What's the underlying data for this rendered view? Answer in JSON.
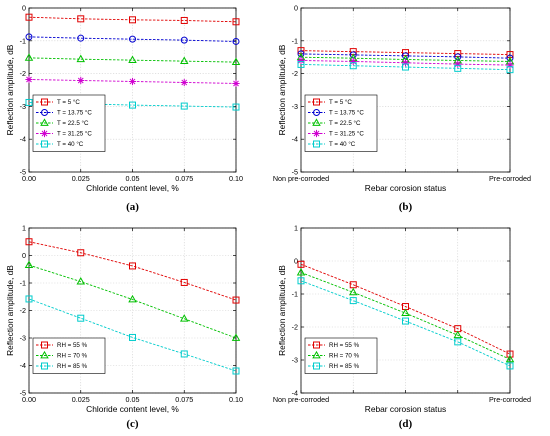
{
  "figure_title": "",
  "chart_data": [
    {
      "type": "line",
      "panel_label": "(a)",
      "xlabel": "Chloride content level, %",
      "ylabel": "Reflection amplitude, dB",
      "x": [
        0.0,
        0.025,
        0.05,
        0.075,
        0.1
      ],
      "xtick_labels": [
        "0.00",
        "0.025",
        "0.05",
        "0.075",
        "0.10"
      ],
      "xlim": [
        0.0,
        0.1
      ],
      "ylim": [
        -5,
        0
      ],
      "yticks": [
        0,
        -1,
        -2,
        -3,
        -4,
        -5
      ],
      "grid": true,
      "legend_position": "bottom-left",
      "series": [
        {
          "name": "T = 5 °C",
          "color": "#e00000",
          "marker": "square",
          "values": [
            -0.28,
            -0.33,
            -0.36,
            -0.38,
            -0.42
          ]
        },
        {
          "name": "T = 13.75 °C",
          "color": "#0000d0",
          "marker": "circle",
          "values": [
            -0.88,
            -0.92,
            -0.95,
            -0.98,
            -1.02
          ]
        },
        {
          "name": "T = 22.5 °C",
          "color": "#00c000",
          "marker": "triangle",
          "values": [
            -1.52,
            -1.56,
            -1.59,
            -1.62,
            -1.65
          ]
        },
        {
          "name": "T = 31.25 °C",
          "color": "#d000d0",
          "marker": "star",
          "values": [
            -2.18,
            -2.21,
            -2.24,
            -2.27,
            -2.3
          ]
        },
        {
          "name": "T = 40 °C",
          "color": "#00cccc",
          "marker": "square",
          "values": [
            -2.88,
            -2.92,
            -2.96,
            -2.99,
            -3.02
          ]
        }
      ]
    },
    {
      "type": "line",
      "panel_label": "(b)",
      "xlabel": "Rebar corosion status",
      "ylabel": "Reflection amplitude, dB",
      "x": [
        0,
        1,
        2,
        3,
        4
      ],
      "xtick_labels": [
        "Non pre-corroded",
        "",
        "",
        "",
        "Pre-corroded"
      ],
      "xlim": [
        0,
        4
      ],
      "ylim": [
        -5,
        0
      ],
      "yticks": [
        0,
        -1,
        -2,
        -3,
        -4,
        -5
      ],
      "grid": true,
      "legend_position": "bottom-left",
      "series": [
        {
          "name": "T = 5 °C",
          "color": "#e00000",
          "marker": "square",
          "values": [
            -1.3,
            -1.33,
            -1.36,
            -1.39,
            -1.42
          ]
        },
        {
          "name": "T = 13.75 °C",
          "color": "#0000d0",
          "marker": "circle",
          "values": [
            -1.4,
            -1.43,
            -1.46,
            -1.49,
            -1.53
          ]
        },
        {
          "name": "T = 22.5 °C",
          "color": "#00c000",
          "marker": "triangle",
          "values": [
            -1.5,
            -1.53,
            -1.57,
            -1.6,
            -1.63
          ]
        },
        {
          "name": "T = 31.25 °C",
          "color": "#d000d0",
          "marker": "star",
          "values": [
            -1.6,
            -1.63,
            -1.67,
            -1.71,
            -1.74
          ]
        },
        {
          "name": "T = 40 °C",
          "color": "#00cccc",
          "marker": "square",
          "values": [
            -1.72,
            -1.76,
            -1.8,
            -1.84,
            -1.88
          ]
        }
      ]
    },
    {
      "type": "line",
      "panel_label": "(c)",
      "xlabel": "Chloride content level, %",
      "ylabel": "Reflection amplitude, dB",
      "x": [
        0.0,
        0.025,
        0.05,
        0.075,
        0.1
      ],
      "xtick_labels": [
        "0.00",
        "0.025",
        "0.05",
        "0.075",
        "0.10"
      ],
      "xlim": [
        0.0,
        0.1
      ],
      "ylim": [
        -5,
        1
      ],
      "yticks": [
        1,
        0,
        -1,
        -2,
        -3,
        -4,
        -5
      ],
      "grid": true,
      "legend_position": "bottom-left",
      "series": [
        {
          "name": "RH = 55 %",
          "color": "#e00000",
          "marker": "square",
          "values": [
            0.5,
            0.1,
            -0.38,
            -0.98,
            -1.62
          ]
        },
        {
          "name": "RH = 70 %",
          "color": "#00c000",
          "marker": "triangle",
          "values": [
            -0.35,
            -0.95,
            -1.6,
            -2.3,
            -3.0
          ]
        },
        {
          "name": "RH = 85 %",
          "color": "#00cccc",
          "marker": "square",
          "values": [
            -1.58,
            -2.28,
            -2.98,
            -3.58,
            -4.2
          ]
        }
      ]
    },
    {
      "type": "line",
      "panel_label": "(d)",
      "xlabel": "Rebar corosion status",
      "ylabel": "Reflection amplitude, dB",
      "x": [
        0,
        1,
        2,
        3,
        4
      ],
      "xtick_labels": [
        "Non pre-corroded",
        "",
        "",
        "",
        "Pre-corroded"
      ],
      "xlim": [
        0,
        4
      ],
      "ylim": [
        -4,
        1
      ],
      "yticks": [
        1,
        0,
        -1,
        -2,
        -3,
        -4
      ],
      "grid": true,
      "legend_position": "bottom-left",
      "series": [
        {
          "name": "RH = 55 %",
          "color": "#e00000",
          "marker": "square",
          "values": [
            -0.1,
            -0.72,
            -1.38,
            -2.05,
            -2.82
          ]
        },
        {
          "name": "RH = 70 %",
          "color": "#00c000",
          "marker": "triangle",
          "values": [
            -0.35,
            -0.95,
            -1.58,
            -2.25,
            -2.98
          ]
        },
        {
          "name": "RH = 85 %",
          "color": "#00cccc",
          "marker": "square",
          "values": [
            -0.6,
            -1.2,
            -1.82,
            -2.45,
            -3.18
          ]
        }
      ]
    }
  ]
}
